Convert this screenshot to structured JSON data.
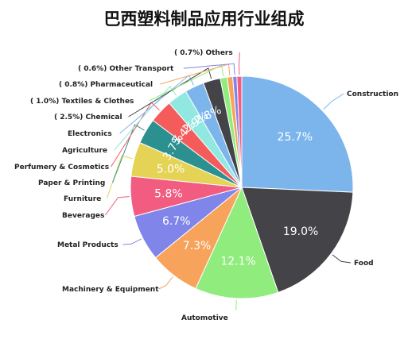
{
  "chart_data": {
    "type": "pie",
    "title": "巴西塑料制品应用行业组成",
    "slices": [
      {
        "category": "Construction",
        "value": 25.7,
        "label": "25.7%",
        "color": "#7cb5ec"
      },
      {
        "category": "Food",
        "value": 19.0,
        "label": "19.0%",
        "color": "#434348"
      },
      {
        "category": "Automotive",
        "value": 12.1,
        "label": "12.1%",
        "color": "#90ed7d"
      },
      {
        "category": "Machinery & Equipment",
        "value": 7.3,
        "label": "7.3%",
        "color": "#f7a35c"
      },
      {
        "category": "Metal Products",
        "value": 6.7,
        "label": "6.7%",
        "color": "#8085e9"
      },
      {
        "category": "Beverages",
        "value": 5.8,
        "label": "5.8%",
        "color": "#f15c80"
      },
      {
        "category": "Furniture",
        "value": 5.0,
        "label": "5.0%",
        "color": "#e4d354"
      },
      {
        "category": "Paper & Printing",
        "value": 3.7,
        "label": "3.7%",
        "color": "#2b908f"
      },
      {
        "category": "Perfumery & Cosmetics",
        "value": 3.4,
        "label": "3.4%",
        "color": "#f45b5b"
      },
      {
        "category": "Agriculture",
        "value": 2.9,
        "label": "2.9%",
        "color": "#91e8e1"
      },
      {
        "category": "Electronics",
        "value": 2.8,
        "label": "2.8%",
        "color": "#7cb5ec"
      },
      {
        "category": "Chemical",
        "value": 2.5,
        "label": "",
        "category_label": "( 2.5%) Chemical",
        "color": "#434348"
      },
      {
        "category": "Textiles & Clothes",
        "value": 1.0,
        "label": "",
        "category_label": "( 1.0%) Textiles & Clothes",
        "color": "#90ed7d"
      },
      {
        "category": "Pharmaceutical",
        "value": 0.8,
        "label": "",
        "category_label": "( 0.8%) Pharmaceutical",
        "color": "#f7a35c"
      },
      {
        "category": "Other Transport",
        "value": 0.6,
        "label": "",
        "category_label": "( 0.6%) Other Transport",
        "color": "#8085e9"
      },
      {
        "category": "Others",
        "value": 0.7,
        "label": "",
        "category_label": "( 0.7%) Others",
        "color": "#f15c80"
      }
    ],
    "legend": "none"
  }
}
